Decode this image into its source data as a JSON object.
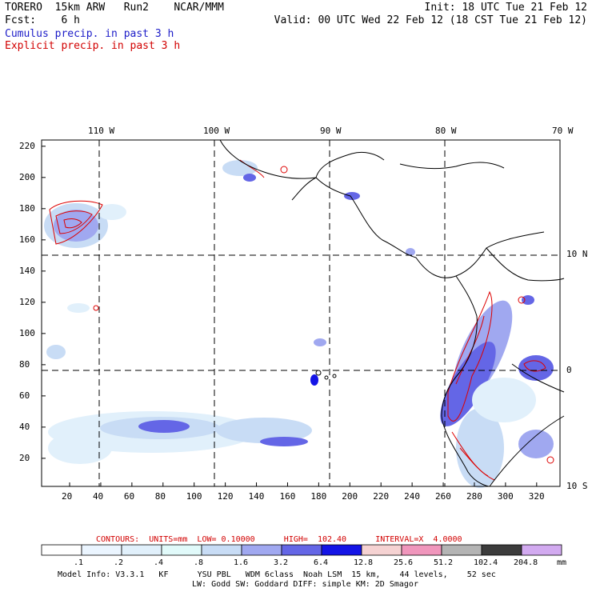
{
  "header": {
    "left_line1": "TORERO  15km ARW   Run2    NCAR/MMM",
    "left_line2": "Fcst:    6 h",
    "right_line1": "Init: 18 UTC Tue 21 Feb 12",
    "right_line2": "Valid: 00 UTC Wed 22 Feb 12 (18 CST Tue 21 Feb 12)",
    "legend_cumulus": "Cumulus precip. in past 3 h",
    "legend_explicit": "Explicit precip. in past 3 h"
  },
  "map": {
    "top_lon_labels": [
      "110 W",
      "100 W",
      "90 W",
      "80 W",
      "70 W"
    ],
    "right_lat_labels": [
      "10 N",
      "0",
      "10 S"
    ],
    "left_y_ticks": [
      "220",
      "200",
      "180",
      "160",
      "140",
      "120",
      "100",
      "80",
      "60",
      "40",
      "20"
    ],
    "bottom_x_ticks": [
      "20",
      "40",
      "60",
      "80",
      "100",
      "120",
      "140",
      "160",
      "180",
      "200",
      "220",
      "240",
      "260",
      "280",
      "300",
      "320"
    ],
    "colors": {
      "cumulus": "#4040e0",
      "explicit": "#dd0000",
      "coast": "#000000"
    }
  },
  "contours": {
    "label": "CONTOURS:  UNITS=mm  LOW= 0.10000      HIGH=  102.40      INTERVAL=X  4.0000"
  },
  "colorbar": {
    "labels": [
      ".1",
      ".2",
      ".4",
      ".8",
      "1.6",
      "3.2",
      "6.4",
      "12.8",
      "25.6",
      "51.2",
      "102.4",
      "204.8"
    ],
    "unit": "mm",
    "colors": [
      "#ffffff",
      "#ebf5ff",
      "#e1f0fb",
      "#e1fafa",
      "#c8dcf5",
      "#a0a8f0",
      "#6466e6",
      "#1414e6",
      "#f5d2d2",
      "#f096bc",
      "#b4b4b4",
      "#3c3c3c",
      "#d2aaf0"
    ]
  },
  "footer": {
    "line1": "Model Info: V3.3.1   KF      YSU PBL   WDM 6class  Noah LSM  15 km,    44 levels,    52 sec",
    "line2": "LW: Godd SW: Goddard DIFF: simple KM: 2D Smagor"
  }
}
